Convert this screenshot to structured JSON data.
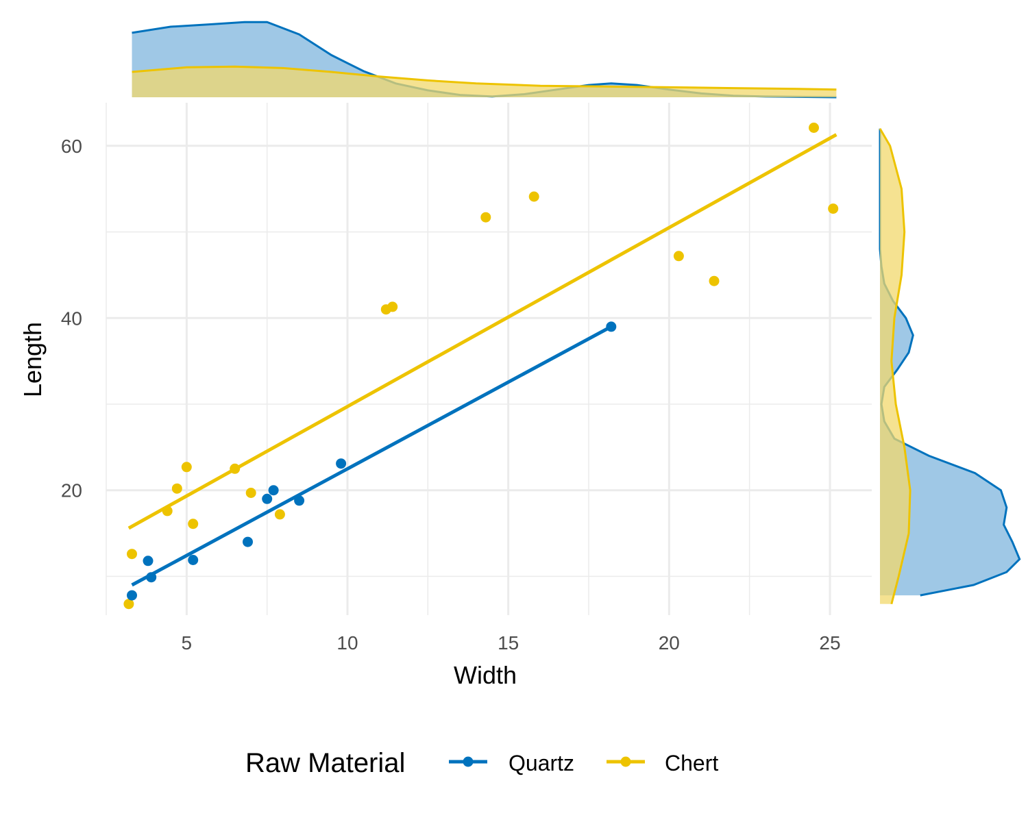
{
  "chart_data": {
    "type": "scatter",
    "title": "",
    "xlabel": "Width",
    "ylabel": "Length",
    "xlim": [
      2.5,
      26.3
    ],
    "ylim": [
      5.5,
      65
    ],
    "x_ticks": [
      5,
      10,
      15,
      20,
      25
    ],
    "y_ticks": [
      20,
      40,
      60
    ],
    "grid": true,
    "legend": {
      "title": "Raw Material",
      "position": "bottom"
    },
    "series": [
      {
        "name": "Quartz",
        "color": "#0072BD",
        "fill": "#7FB5DE",
        "points": [
          [
            3.3,
            7.8
          ],
          [
            3.8,
            11.8
          ],
          [
            3.9,
            9.9
          ],
          [
            5.2,
            11.9
          ],
          [
            6.9,
            14.0
          ],
          [
            7.5,
            19.0
          ],
          [
            7.7,
            20.0
          ],
          [
            8.5,
            18.8
          ],
          [
            9.8,
            23.1
          ],
          [
            18.2,
            39.0
          ]
        ],
        "fit": [
          [
            3.3,
            9.0
          ],
          [
            18.2,
            39.0
          ]
        ],
        "x_density": [
          [
            3.3,
            0.84
          ],
          [
            4.5,
            0.92
          ],
          [
            5.7,
            0.95
          ],
          [
            6.8,
            0.98
          ],
          [
            7.5,
            0.98
          ],
          [
            8.5,
            0.82
          ],
          [
            9.5,
            0.55
          ],
          [
            10.5,
            0.34
          ],
          [
            11.5,
            0.18
          ],
          [
            12.5,
            0.09
          ],
          [
            13.5,
            0.03
          ],
          [
            14.5,
            0.01
          ],
          [
            15.5,
            0.04
          ],
          [
            16.5,
            0.1
          ],
          [
            17.5,
            0.16
          ],
          [
            18.2,
            0.18
          ],
          [
            19.0,
            0.16
          ],
          [
            20.0,
            0.1
          ],
          [
            21.0,
            0.05
          ],
          [
            22.0,
            0.02
          ],
          [
            23.0,
            0.01
          ],
          [
            25.2,
            0.0
          ]
        ],
        "y_density": [
          [
            7.8,
            0.28
          ],
          [
            9.0,
            0.65
          ],
          [
            10.5,
            0.88
          ],
          [
            12.0,
            0.97
          ],
          [
            14.0,
            0.92
          ],
          [
            16.0,
            0.86
          ],
          [
            18.0,
            0.88
          ],
          [
            20.0,
            0.84
          ],
          [
            22.0,
            0.66
          ],
          [
            24.0,
            0.34
          ],
          [
            26.0,
            0.1
          ],
          [
            28.0,
            0.03
          ],
          [
            30.0,
            0.01
          ],
          [
            32.0,
            0.03
          ],
          [
            34.0,
            0.12
          ],
          [
            36.0,
            0.2
          ],
          [
            38.0,
            0.23
          ],
          [
            40.0,
            0.18
          ],
          [
            42.0,
            0.09
          ],
          [
            44.0,
            0.03
          ],
          [
            46.0,
            0.01
          ],
          [
            48.0,
            0.0
          ],
          [
            62.0,
            0.0
          ]
        ]
      },
      {
        "name": "Chert",
        "color": "#EDC300",
        "fill": "#F2D86C",
        "points": [
          [
            3.2,
            6.8
          ],
          [
            3.3,
            12.6
          ],
          [
            4.4,
            17.6
          ],
          [
            4.7,
            20.2
          ],
          [
            5.0,
            22.7
          ],
          [
            5.2,
            16.1
          ],
          [
            6.5,
            22.5
          ],
          [
            7.0,
            19.7
          ],
          [
            7.9,
            17.2
          ],
          [
            11.2,
            41.0
          ],
          [
            11.4,
            41.3
          ],
          [
            14.3,
            51.7
          ],
          [
            15.8,
            54.1
          ],
          [
            20.3,
            47.2
          ],
          [
            21.4,
            44.3
          ],
          [
            24.5,
            62.1
          ],
          [
            25.1,
            52.7
          ]
        ],
        "fit": [
          [
            3.2,
            15.6
          ],
          [
            25.2,
            61.3
          ]
        ],
        "x_density": [
          [
            3.3,
            0.33
          ],
          [
            5.0,
            0.39
          ],
          [
            6.5,
            0.4
          ],
          [
            8.0,
            0.38
          ],
          [
            9.5,
            0.33
          ],
          [
            11.0,
            0.27
          ],
          [
            12.5,
            0.22
          ],
          [
            14.0,
            0.18
          ],
          [
            16.0,
            0.15
          ],
          [
            18.0,
            0.14
          ],
          [
            20.0,
            0.13
          ],
          [
            22.0,
            0.12
          ],
          [
            24.0,
            0.11
          ],
          [
            25.2,
            0.1
          ]
        ],
        "y_density": [
          [
            6.8,
            0.08
          ],
          [
            10.0,
            0.13
          ],
          [
            15.0,
            0.2
          ],
          [
            20.0,
            0.21
          ],
          [
            25.0,
            0.17
          ],
          [
            30.0,
            0.11
          ],
          [
            35.0,
            0.08
          ],
          [
            40.0,
            0.1
          ],
          [
            45.0,
            0.15
          ],
          [
            50.0,
            0.17
          ],
          [
            55.0,
            0.15
          ],
          [
            60.0,
            0.07
          ],
          [
            62.0,
            0.0
          ]
        ]
      }
    ]
  }
}
